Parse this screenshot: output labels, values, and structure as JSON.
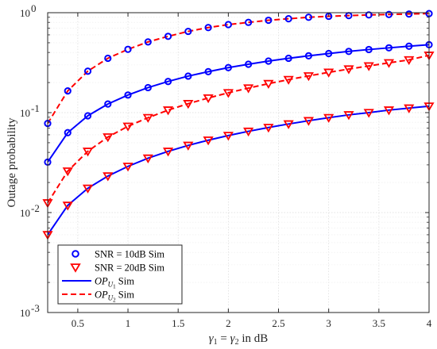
{
  "chart_data": {
    "type": "line",
    "xlabel": "γ1 = γ2 in dB",
    "ylabel": "Outage probability",
    "xscale": "linear",
    "yscale": "log",
    "xlim": [
      0.2,
      4
    ],
    "ylim": [
      0.001,
      1
    ],
    "grid": true,
    "legend_position": "bottom-left",
    "x_ticks": [
      "0.5",
      "1",
      "1.5",
      "2",
      "2.5",
      "3",
      "3.5",
      "4"
    ],
    "x_tick_values": [
      0.5,
      1,
      1.5,
      2,
      2.5,
      3,
      3.5,
      4
    ],
    "y_ticks": [
      {
        "value": 0.001,
        "base": "10",
        "exp": "-3"
      },
      {
        "value": 0.01,
        "base": "10",
        "exp": "-2"
      },
      {
        "value": 0.1,
        "base": "10",
        "exp": "-1"
      },
      {
        "value": 1,
        "base": "10",
        "exp": "0"
      }
    ],
    "x": [
      0.2,
      0.4,
      0.6,
      0.8,
      1.0,
      1.2,
      1.4,
      1.6,
      1.8,
      2.0,
      2.2,
      2.4,
      2.6,
      2.8,
      3.0,
      3.2,
      3.4,
      3.6,
      3.8,
      4.0
    ],
    "series": [
      {
        "name": "SNR = 10dB Sim",
        "curve": "OP_U2",
        "marker": "circle",
        "color": "#0000ff",
        "values": [
          0.078,
          0.165,
          0.26,
          0.35,
          0.43,
          0.51,
          0.58,
          0.65,
          0.71,
          0.76,
          0.8,
          0.84,
          0.87,
          0.9,
          0.92,
          0.935,
          0.95,
          0.96,
          0.97,
          0.98
        ]
      },
      {
        "name": "SNR = 10dB Sim",
        "curve": "OP_U1",
        "marker": "circle",
        "color": "#0000ff",
        "values": [
          0.032,
          0.063,
          0.093,
          0.122,
          0.15,
          0.178,
          0.205,
          0.232,
          0.257,
          0.282,
          0.305,
          0.328,
          0.35,
          0.37,
          0.39,
          0.41,
          0.428,
          0.445,
          0.462,
          0.478
        ]
      },
      {
        "name": "SNR = 20dB Sim",
        "curve": "OP_U2",
        "marker": "triangle",
        "color": "#ff0000",
        "values": [
          0.0125,
          0.026,
          0.041,
          0.057,
          0.073,
          0.089,
          0.106,
          0.123,
          0.14,
          0.158,
          0.176,
          0.195,
          0.214,
          0.233,
          0.253,
          0.273,
          0.293,
          0.315,
          0.337,
          0.375
        ]
      },
      {
        "name": "SNR = 20dB Sim",
        "curve": "OP_U1",
        "marker": "triangle",
        "color": "#ff0000",
        "values": [
          0.006,
          0.0118,
          0.0175,
          0.0232,
          0.029,
          0.035,
          0.041,
          0.047,
          0.053,
          0.059,
          0.065,
          0.071,
          0.077,
          0.083,
          0.089,
          0.095,
          0.1,
          0.106,
          0.111,
          0.116
        ]
      }
    ],
    "curves": [
      {
        "key": "OP_U1",
        "name": "OP_{U1} Sim",
        "style": "solid",
        "color": "#0000ff"
      },
      {
        "key": "OP_U2",
        "name": "OP_{U2} Sim",
        "style": "dashed",
        "color": "#ff0000"
      }
    ],
    "legend": [
      {
        "label": "SNR = 10dB Sim",
        "kind": "marker",
        "marker": "circle",
        "color": "#0000ff"
      },
      {
        "label": "SNR = 20dB Sim",
        "kind": "marker",
        "marker": "triangle",
        "color": "#ff0000"
      },
      {
        "label_main": "OP",
        "label_sub": "U",
        "label_subsub": "1",
        "label_rest": " Sim",
        "kind": "line",
        "style": "solid",
        "color": "#0000ff"
      },
      {
        "label_main": "OP",
        "label_sub": "U",
        "label_subsub": "2",
        "label_rest": " Sim",
        "kind": "line",
        "style": "dashed",
        "color": "#ff0000"
      }
    ]
  }
}
